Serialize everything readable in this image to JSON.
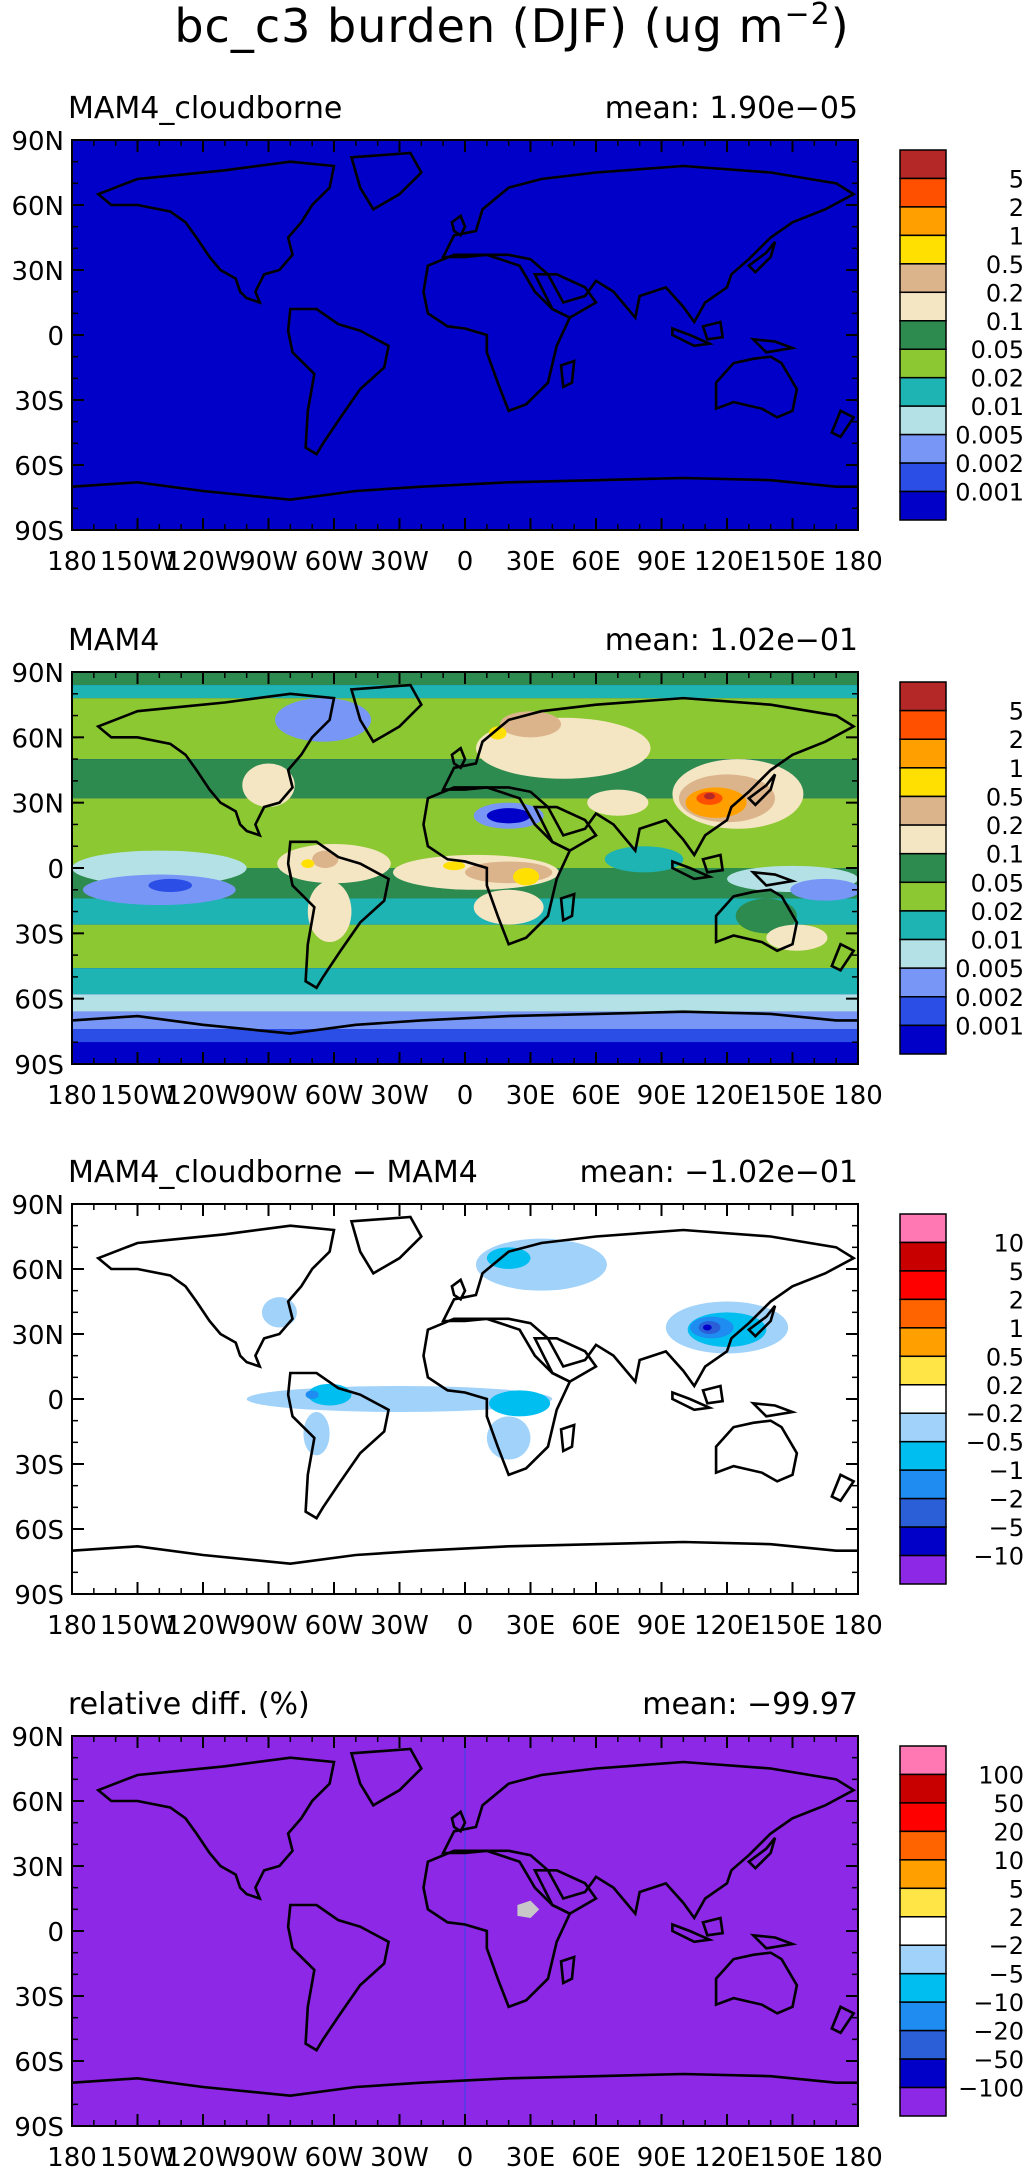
{
  "figure": {
    "title_main": "bc_c3 burden (DJF) (ug m",
    "title_exponent": "−2",
    "title_close": ")"
  },
  "axes": {
    "lat_ticks": [
      "90N",
      "60N",
      "30N",
      "0",
      "30S",
      "60S",
      "90S"
    ],
    "lon_ticks": [
      "180",
      "150W",
      "120W",
      "90W",
      "60W",
      "30W",
      "0",
      "30E",
      "60E",
      "90E",
      "120E",
      "150E",
      "180"
    ]
  },
  "colors": {
    "burden_scale": [
      "#0000c8",
      "#2a4ee6",
      "#7896f5",
      "#b4e1e6",
      "#1eb4b4",
      "#8cc832",
      "#2e8b50",
      "#f5e6c3",
      "#dcb48c",
      "#ffe000",
      "#ffa000",
      "#ff5000",
      "#b42828"
    ],
    "diff_scale": [
      "#8c28e6",
      "#0000c8",
      "#2a5fd7",
      "#1e8cf0",
      "#00bef0",
      "#a0d2fa",
      "#ffffff",
      "#ffe646",
      "#ffa000",
      "#ff6400",
      "#ff0000",
      "#c80000",
      "#ff78b4"
    ],
    "missing": "#c8c8c8",
    "coast": "#000000"
  },
  "panels": [
    {
      "title": "MAM4_cloudborne",
      "mean_label": "mean:",
      "mean_value": "1.90e−05",
      "scale": "burden",
      "colorbar_labels": [
        "5",
        "2",
        "1",
        "0.5",
        "0.2",
        "0.1",
        "0.05",
        "0.02",
        "0.01",
        "0.005",
        "0.002",
        "0.001"
      ]
    },
    {
      "title": "MAM4",
      "mean_label": "mean:",
      "mean_value": "1.02e−01",
      "scale": "burden",
      "colorbar_labels": [
        "5",
        "2",
        "1",
        "0.5",
        "0.2",
        "0.1",
        "0.05",
        "0.02",
        "0.01",
        "0.005",
        "0.002",
        "0.001"
      ]
    },
    {
      "title": "MAM4_cloudborne − MAM4",
      "mean_label": "mean:",
      "mean_value": "−1.02e−01",
      "scale": "diff",
      "colorbar_labels": [
        "10",
        "5",
        "2",
        "1",
        "0.5",
        "0.2",
        "−0.2",
        "−0.5",
        "−1",
        "−2",
        "−5",
        "−10"
      ]
    },
    {
      "title": "relative diff. (%)",
      "mean_label": "mean:",
      "mean_value": "−99.97",
      "scale": "diff",
      "colorbar_labels": [
        "100",
        "50",
        "20",
        "10",
        "5",
        "2",
        "−2",
        "−5",
        "−10",
        "−20",
        "−50",
        "−100"
      ]
    }
  ]
}
